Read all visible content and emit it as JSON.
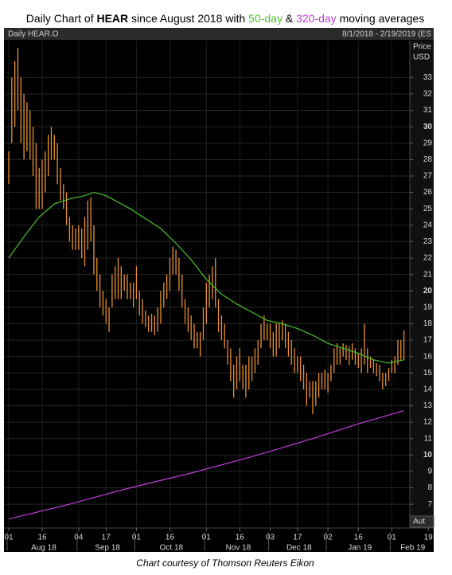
{
  "chart_data": {
    "type": "ohlc",
    "title": [
      "Daily Chart of ",
      "HEAR",
      " since August 2018 with ",
      " & ",
      " moving averages"
    ],
    "ticker_label": "Daily HEAR.O",
    "range_label": "8/1/2018 - 2/19/2019 (ES",
    "y_title": [
      "Price",
      "USD"
    ],
    "auto_label": "Aut",
    "caption": "Chart courtesy of Thomson Reuters Eikon",
    "color": "#e8912d",
    "x": [
      "2018-08-01",
      "2018-08-02",
      "2018-08-03",
      "2018-08-06",
      "2018-08-07",
      "2018-08-08",
      "2018-08-09",
      "2018-08-10",
      "2018-08-13",
      "2018-08-14",
      "2018-08-15",
      "2018-08-16",
      "2018-08-17",
      "2018-08-20",
      "2018-08-21",
      "2018-08-22",
      "2018-08-23",
      "2018-08-24",
      "2018-08-27",
      "2018-08-28",
      "2018-08-29",
      "2018-08-30",
      "2018-08-31",
      "2018-09-04",
      "2018-09-05",
      "2018-09-06",
      "2018-09-07",
      "2018-09-10",
      "2018-09-11",
      "2018-09-12",
      "2018-09-13",
      "2018-09-14",
      "2018-09-17",
      "2018-09-18",
      "2018-09-19",
      "2018-09-20",
      "2018-09-21",
      "2018-09-24",
      "2018-09-25",
      "2018-09-26",
      "2018-09-27",
      "2018-09-28",
      "2018-10-01",
      "2018-10-02",
      "2018-10-03",
      "2018-10-04",
      "2018-10-05",
      "2018-10-08",
      "2018-10-09",
      "2018-10-10",
      "2018-10-11",
      "2018-10-12",
      "2018-10-15",
      "2018-10-16",
      "2018-10-17",
      "2018-10-18",
      "2018-10-19",
      "2018-10-22",
      "2018-10-23",
      "2018-10-24",
      "2018-10-25",
      "2018-10-26",
      "2018-10-29",
      "2018-10-30",
      "2018-10-31",
      "2018-11-01",
      "2018-11-02",
      "2018-11-05",
      "2018-11-06",
      "2018-11-07",
      "2018-11-08",
      "2018-11-09",
      "2018-11-12",
      "2018-11-13",
      "2018-11-14",
      "2018-11-15",
      "2018-11-16",
      "2018-11-19",
      "2018-11-20",
      "2018-11-21",
      "2018-11-23",
      "2018-11-26",
      "2018-11-27",
      "2018-11-28",
      "2018-11-29",
      "2018-11-30",
      "2018-12-03",
      "2018-12-04",
      "2018-12-06",
      "2018-12-07",
      "2018-12-10",
      "2018-12-11",
      "2018-12-12",
      "2018-12-13",
      "2018-12-14",
      "2018-12-17",
      "2018-12-18",
      "2018-12-19",
      "2018-12-20",
      "2018-12-21",
      "2018-12-24",
      "2018-12-26",
      "2018-12-27",
      "2018-12-28",
      "2018-12-31",
      "2019-01-02",
      "2019-01-03",
      "2019-01-04",
      "2019-01-07",
      "2019-01-08",
      "2019-01-09",
      "2019-01-10",
      "2019-01-11",
      "2019-01-14",
      "2019-01-15",
      "2019-01-16",
      "2019-01-17",
      "2019-01-18",
      "2019-01-22",
      "2019-01-23",
      "2019-01-24",
      "2019-01-25",
      "2019-01-28",
      "2019-01-29",
      "2019-01-30",
      "2019-01-31",
      "2019-02-01",
      "2019-02-04",
      "2019-02-05",
      "2019-02-06",
      "2019-02-07"
    ],
    "low": [
      26.5,
      29,
      30,
      31,
      29,
      28,
      28.5,
      28,
      27,
      25,
      25,
      25,
      26,
      27,
      28,
      28,
      26.5,
      25.5,
      25,
      24,
      23,
      22.5,
      22.5,
      22.5,
      22,
      21.5,
      22.5,
      23,
      21,
      20,
      19,
      18.5,
      18,
      17.5,
      19,
      19.5,
      19.5,
      19.5,
      20,
      19.5,
      19.5,
      19,
      19.5,
      18.5,
      18,
      17.8,
      17.5,
      17.5,
      17.3,
      17.5,
      18,
      19,
      19.5,
      20,
      21,
      21,
      20,
      19,
      18,
      17.5,
      17,
      16.5,
      16.5,
      16,
      17,
      18,
      19,
      19.5,
      19,
      17.5,
      17,
      16.5,
      15.5,
      14.5,
      13.5,
      14,
      14.5,
      14,
      13.5,
      14,
      14.5,
      15,
      15.5,
      16.5,
      17,
      17,
      16.5,
      16,
      16,
      16.5,
      17,
      16.5,
      16,
      15.5,
      15,
      15,
      14.5,
      14,
      13,
      13.5,
      12.5,
      13,
      13.5,
      14,
      14,
      13.8,
      14.5,
      15,
      15.5,
      15.5,
      16,
      15.8,
      15.5,
      15.8,
      15.5,
      15.3,
      15,
      15.5,
      15,
      15.3,
      15,
      14.8,
      14.5,
      14,
      14.2,
      14.5,
      15,
      15,
      15.5,
      15.8,
      15.8
    ],
    "high": [
      28.5,
      33,
      34,
      34.8,
      33,
      32,
      31.5,
      31,
      30,
      29,
      27.5,
      28,
      28.5,
      29.5,
      30,
      29.5,
      29,
      27.5,
      26.5,
      26,
      24.5,
      24,
      23.8,
      24,
      23.8,
      24.5,
      25.5,
      25.7,
      24,
      22,
      21,
      20,
      19.5,
      19,
      21,
      21.5,
      22,
      21.5,
      21,
      21,
      20.5,
      20.5,
      21.5,
      20,
      19.5,
      18.8,
      18.5,
      18.6,
      18.5,
      19,
      20,
      20.5,
      21,
      22,
      22.7,
      22.5,
      22,
      21,
      19.5,
      19,
      18.5,
      18,
      17.5,
      17.5,
      19,
      20.5,
      21,
      21.5,
      22,
      19.5,
      18.5,
      18,
      17,
      16.5,
      15.5,
      16,
      16.5,
      15.5,
      15.5,
      16,
      16,
      16.5,
      17,
      18,
      18.5,
      18,
      18,
      17.5,
      18,
      18,
      18.2,
      18,
      17.5,
      17,
      16.5,
      16,
      16,
      15.5,
      15,
      14.5,
      14.5,
      14.5,
      15,
      15,
      15.2,
      15,
      15.5,
      16.5,
      16.8,
      16.5,
      16.8,
      16.7,
      16.6,
      16.8,
      16.5,
      16.2,
      16.5,
      18,
      16.5,
      16,
      15.8,
      15.6,
      15.5,
      15,
      15,
      15.3,
      15.8,
      16,
      17,
      17,
      17.6
    ],
    "series": [
      {
        "name": "50-day",
        "color": "#4cc22a",
        "x": [
          "2018-08-01",
          "2018-08-08",
          "2018-08-15",
          "2018-08-22",
          "2018-08-29",
          "2018-09-06",
          "2018-09-11",
          "2018-09-17",
          "2018-09-21",
          "2018-09-27",
          "2018-10-04",
          "2018-10-11",
          "2018-10-18",
          "2018-10-25",
          "2018-11-01",
          "2018-11-08",
          "2018-11-15",
          "2018-11-23",
          "2018-11-30",
          "2018-12-10",
          "2018-12-17",
          "2018-12-24",
          "2019-01-02",
          "2019-01-09",
          "2019-01-16",
          "2019-01-24",
          "2019-01-31",
          "2019-02-07"
        ],
        "values": [
          22,
          23.3,
          24.5,
          25.3,
          25.6,
          25.8,
          26,
          25.8,
          25.4,
          25,
          24.4,
          23.8,
          22.9,
          21.9,
          20.7,
          19.8,
          19.2,
          18.7,
          18.2,
          18,
          17.7,
          17.3,
          16.8,
          16.5,
          16.2,
          15.8,
          15.6,
          15.8
        ]
      },
      {
        "name": "320-day",
        "color": "#c13ed8",
        "x": [
          "2018-08-01",
          "2018-08-29",
          "2018-09-27",
          "2018-10-25",
          "2018-11-23",
          "2018-12-24",
          "2019-01-16",
          "2019-02-07"
        ],
        "values": [
          6.1,
          7,
          8,
          8.9,
          9.9,
          11,
          11.9,
          12.7
        ]
      }
    ],
    "ylim": [
      5.6,
      35.2
    ],
    "yticks": [
      7,
      8,
      9,
      10,
      11,
      12,
      13,
      14,
      15,
      16,
      17,
      18,
      19,
      20,
      21,
      22,
      23,
      24,
      25,
      26,
      27,
      28,
      29,
      30,
      31,
      32,
      33
    ],
    "xticks": [
      {
        "value": "2018-08-01",
        "label": "01"
      },
      {
        "value": "2018-08-16",
        "label": "16"
      },
      {
        "value": "2018-09-04",
        "label": "04"
      },
      {
        "value": "2018-09-17",
        "label": "17"
      },
      {
        "value": "2018-10-01",
        "label": "01"
      },
      {
        "value": "2018-10-16",
        "label": "16"
      },
      {
        "value": "2018-11-01",
        "label": "01"
      },
      {
        "value": "2018-11-16",
        "label": "16"
      },
      {
        "value": "2018-12-03",
        "label": "03"
      },
      {
        "value": "2018-12-17",
        "label": "17"
      },
      {
        "value": "2019-01-02",
        "label": "02"
      },
      {
        "value": "2019-01-16",
        "label": "16"
      },
      {
        "value": "2019-02-01",
        "label": "01"
      },
      {
        "value": "2019-02-19",
        "label": "19"
      }
    ],
    "month_ticks": [
      {
        "value": "2018-08-01",
        "label": "Aug 18"
      },
      {
        "value": "2018-09-04",
        "label": "Sep 18"
      },
      {
        "value": "2018-10-01",
        "label": "Oct 18"
      },
      {
        "value": "2018-11-01",
        "label": "Nov 18"
      },
      {
        "value": "2018-12-03",
        "label": "Dec 18"
      },
      {
        "value": "2019-01-02",
        "label": "Jan 19"
      },
      {
        "value": "2019-02-01",
        "label": "Feb 19"
      }
    ],
    "grid": true
  }
}
